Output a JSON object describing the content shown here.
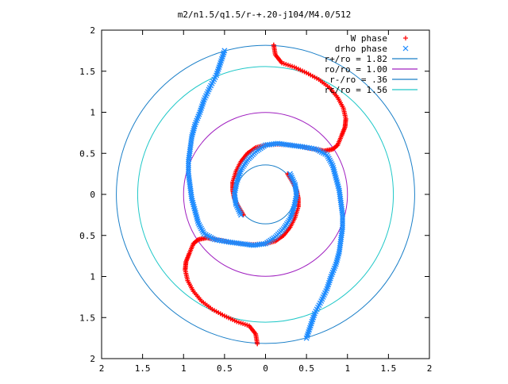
{
  "chart_data": {
    "type": "scatter",
    "title": "m2/n1.5/q1.5/r-+.20-j104/M4.0/512",
    "xlim": [
      -2,
      2
    ],
    "ylim": [
      -2,
      2
    ],
    "x_tick_labels": [
      "2",
      "1.5",
      "1",
      "0.5",
      "0",
      "0.5",
      "1",
      "1.5",
      "2"
    ],
    "y_tick_labels": [
      "2",
      "1.5",
      "1",
      "0.5",
      "0",
      "0.5",
      "1",
      "1.5",
      "2"
    ],
    "grid": false,
    "legend_position": "top-right",
    "series": [
      {
        "name": "W phase",
        "marker": "+",
        "color": "#ff0000",
        "points": [
          [
            0.1,
            1.82
          ],
          [
            0.12,
            1.7
          ],
          [
            0.2,
            1.6
          ],
          [
            0.35,
            1.55
          ],
          [
            0.5,
            1.48
          ],
          [
            0.65,
            1.4
          ],
          [
            0.78,
            1.3
          ],
          [
            0.88,
            1.18
          ],
          [
            0.95,
            1.05
          ],
          [
            0.98,
            0.92
          ],
          [
            0.97,
            0.82
          ],
          [
            0.93,
            0.72
          ],
          [
            0.88,
            0.6
          ],
          [
            0.82,
            0.55
          ],
          [
            0.72,
            0.53
          ],
          [
            0.6,
            0.55
          ],
          [
            0.45,
            0.58
          ],
          [
            0.3,
            0.6
          ],
          [
            0.15,
            0.61
          ],
          [
            0.0,
            0.6
          ],
          [
            -0.12,
            0.57
          ],
          [
            -0.22,
            0.5
          ],
          [
            -0.3,
            0.4
          ],
          [
            -0.36,
            0.28
          ],
          [
            -0.4,
            0.15
          ],
          [
            -0.4,
            0.05
          ],
          [
            -0.38,
            -0.05
          ],
          [
            -0.33,
            -0.15
          ],
          [
            -0.27,
            -0.25
          ],
          [
            -0.1,
            -1.82
          ],
          [
            -0.12,
            -1.7
          ],
          [
            -0.2,
            -1.6
          ],
          [
            -0.35,
            -1.55
          ],
          [
            -0.5,
            -1.48
          ],
          [
            -0.65,
            -1.4
          ],
          [
            -0.78,
            -1.3
          ],
          [
            -0.88,
            -1.18
          ],
          [
            -0.95,
            -1.05
          ],
          [
            -0.98,
            -0.92
          ],
          [
            -0.97,
            -0.82
          ],
          [
            -0.93,
            -0.72
          ],
          [
            -0.88,
            -0.6
          ],
          [
            -0.82,
            -0.55
          ],
          [
            -0.72,
            -0.53
          ],
          [
            -0.6,
            -0.55
          ],
          [
            -0.45,
            -0.58
          ],
          [
            -0.3,
            -0.6
          ],
          [
            -0.15,
            -0.61
          ],
          [
            0.0,
            -0.6
          ],
          [
            0.12,
            -0.57
          ],
          [
            0.22,
            -0.5
          ],
          [
            0.3,
            -0.4
          ],
          [
            0.36,
            -0.28
          ],
          [
            0.4,
            -0.15
          ],
          [
            0.4,
            -0.05
          ],
          [
            0.38,
            0.05
          ],
          [
            0.33,
            0.15
          ],
          [
            0.27,
            0.25
          ]
        ]
      },
      {
        "name": "drho phase",
        "marker": "x",
        "color": "#1e8cff",
        "points": [
          [
            -0.5,
            1.75
          ],
          [
            -0.55,
            1.6
          ],
          [
            -0.6,
            1.45
          ],
          [
            -0.68,
            1.3
          ],
          [
            -0.75,
            1.15
          ],
          [
            -0.8,
            1.0
          ],
          [
            -0.86,
            0.85
          ],
          [
            -0.9,
            0.7
          ],
          [
            -0.92,
            0.55
          ],
          [
            -0.94,
            0.4
          ],
          [
            -0.94,
            0.25
          ],
          [
            -0.92,
            0.1
          ],
          [
            -0.9,
            -0.05
          ],
          [
            -0.86,
            -0.2
          ],
          [
            -0.82,
            -0.35
          ],
          [
            -0.75,
            -0.48
          ],
          [
            -0.62,
            -0.55
          ],
          [
            -0.45,
            -0.58
          ],
          [
            -0.3,
            -0.6
          ],
          [
            -0.15,
            -0.62
          ],
          [
            0.0,
            -0.6
          ],
          [
            0.12,
            -0.52
          ],
          [
            0.22,
            -0.42
          ],
          [
            0.3,
            -0.3
          ],
          [
            0.35,
            -0.15
          ],
          [
            0.38,
            0.0
          ],
          [
            0.36,
            0.12
          ],
          [
            0.3,
            0.25
          ],
          [
            0.5,
            -1.75
          ],
          [
            0.55,
            -1.6
          ],
          [
            0.6,
            -1.45
          ],
          [
            0.68,
            -1.3
          ],
          [
            0.75,
            -1.15
          ],
          [
            0.8,
            -1.0
          ],
          [
            0.86,
            -0.85
          ],
          [
            0.9,
            -0.7
          ],
          [
            0.92,
            -0.55
          ],
          [
            0.94,
            -0.4
          ],
          [
            0.94,
            -0.25
          ],
          [
            0.92,
            -0.1
          ],
          [
            0.9,
            0.05
          ],
          [
            0.86,
            0.2
          ],
          [
            0.82,
            0.35
          ],
          [
            0.75,
            0.48
          ],
          [
            0.62,
            0.55
          ],
          [
            0.45,
            0.58
          ],
          [
            0.3,
            0.6
          ],
          [
            0.15,
            0.62
          ],
          [
            0.0,
            0.6
          ],
          [
            -0.12,
            0.52
          ],
          [
            -0.22,
            0.42
          ],
          [
            -0.3,
            0.3
          ],
          [
            -0.35,
            0.15
          ],
          [
            -0.38,
            0.0
          ],
          [
            -0.36,
            -0.12
          ],
          [
            -0.3,
            -0.25
          ]
        ]
      }
    ],
    "circles": [
      {
        "name": "r+/ro = 1.82",
        "radius": 1.82,
        "color": "#1a7fc8"
      },
      {
        "name": "ro/ro = 1.00",
        "radius": 1.0,
        "color": "#a020c0"
      },
      {
        "name": "r-/ro = .36",
        "radius": 0.36,
        "color": "#1a7fc8"
      },
      {
        "name": "rc/ro = 1.56",
        "radius": 1.56,
        "color": "#20c8c8"
      }
    ]
  }
}
